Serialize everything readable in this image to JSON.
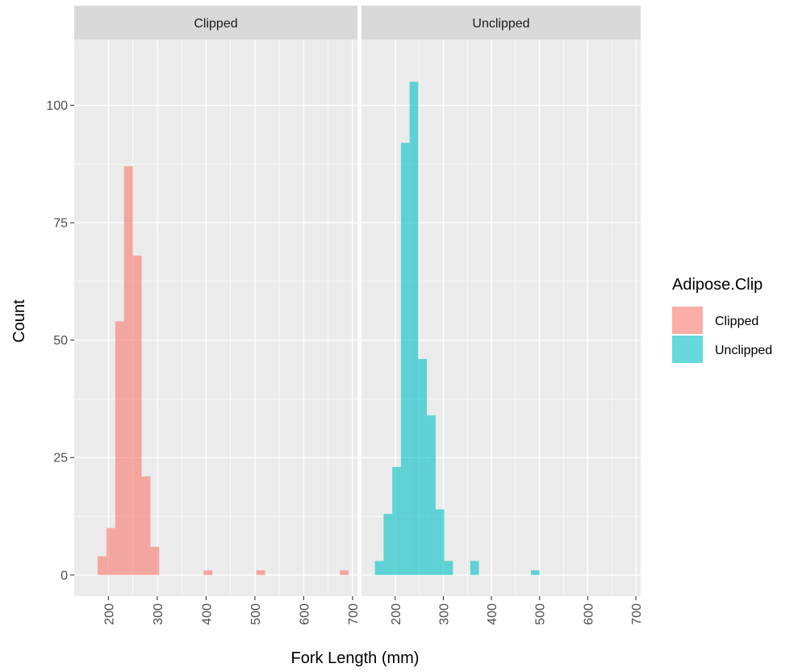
{
  "chart_data": {
    "type": "bar",
    "subtype": "faceted-histogram",
    "xlabel": "Fork Length (mm)",
    "ylabel": "Count",
    "xlim": [
      130,
      710
    ],
    "ylim": [
      -4.5,
      114
    ],
    "x_ticks": [
      "200",
      "300",
      "400",
      "500",
      "600",
      "700"
    ],
    "y_ticks": [
      "0",
      "25",
      "50",
      "75",
      "100"
    ],
    "bin_width": 18,
    "grid": true,
    "legend": {
      "title": "Adipose.Clip",
      "position": "right",
      "entries": [
        "Clipped",
        "Unclipped"
      ]
    },
    "series": [
      {
        "name": "Clipped",
        "facet": "Clipped",
        "color": "#f8766d",
        "bins": [
          {
            "x": 187,
            "value": 4
          },
          {
            "x": 205,
            "value": 10
          },
          {
            "x": 223,
            "value": 54
          },
          {
            "x": 241,
            "value": 87
          },
          {
            "x": 259,
            "value": 68
          },
          {
            "x": 277,
            "value": 21
          },
          {
            "x": 295,
            "value": 6
          },
          {
            "x": 404,
            "value": 1
          },
          {
            "x": 512,
            "value": 1
          },
          {
            "x": 683,
            "value": 1
          }
        ]
      },
      {
        "name": "Unclipped",
        "facet": "Unclipped",
        "color": "#00bfc4",
        "bins": [
          {
            "x": 167,
            "value": 3
          },
          {
            "x": 185,
            "value": 13
          },
          {
            "x": 203,
            "value": 23
          },
          {
            "x": 221,
            "value": 92
          },
          {
            "x": 239,
            "value": 105
          },
          {
            "x": 257,
            "value": 46
          },
          {
            "x": 275,
            "value": 34
          },
          {
            "x": 293,
            "value": 14
          },
          {
            "x": 311,
            "value": 3
          },
          {
            "x": 365,
            "value": 3
          },
          {
            "x": 491,
            "value": 1
          }
        ]
      }
    ]
  },
  "colors": {
    "panel_background": "#ebebeb",
    "strip_background": "#d9d9d9",
    "grid": "#ffffff",
    "clipped": "#f8766d",
    "unclipped": "#00bfc4"
  }
}
